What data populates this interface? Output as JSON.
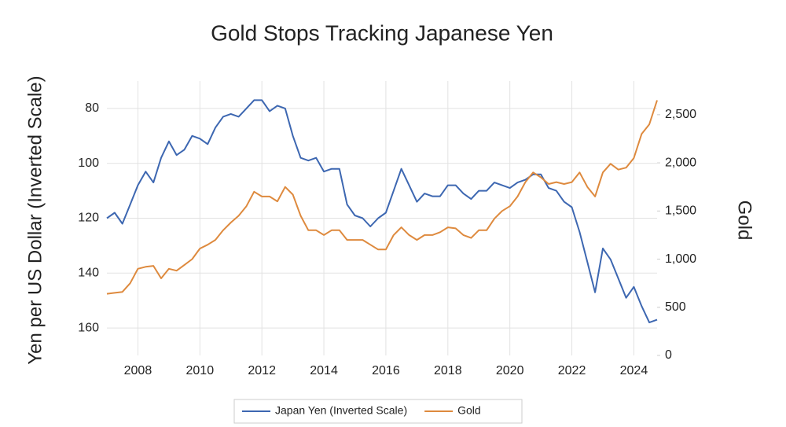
{
  "chart_data": {
    "type": "line",
    "title": "Gold Stops Tracking Japanese Yen",
    "y_label": "Yen per US Dollar (Inverted Scale)",
    "y2_label": "Gold",
    "x": [
      2007,
      2007.25,
      2007.5,
      2007.75,
      2008,
      2008.25,
      2008.5,
      2008.75,
      2009,
      2009.25,
      2009.5,
      2009.75,
      2010,
      2010.25,
      2010.5,
      2010.75,
      2011,
      2011.25,
      2011.5,
      2011.75,
      2012,
      2012.25,
      2012.5,
      2012.75,
      2013,
      2013.25,
      2013.5,
      2013.75,
      2014,
      2014.25,
      2014.5,
      2014.75,
      2015,
      2015.25,
      2015.5,
      2015.75,
      2016,
      2016.25,
      2016.5,
      2016.75,
      2017,
      2017.25,
      2017.5,
      2017.75,
      2018,
      2018.25,
      2018.5,
      2018.75,
      2019,
      2019.25,
      2019.5,
      2019.75,
      2020,
      2020.25,
      2020.5,
      2020.75,
      2021,
      2021.25,
      2021.5,
      2021.75,
      2022,
      2022.25,
      2022.5,
      2022.75,
      2023,
      2023.25,
      2023.5,
      2023.75,
      2024,
      2024.25,
      2024.5,
      2024.75
    ],
    "series": [
      {
        "name": "Japan Yen (Inverted Scale)",
        "color": "#3d67b1",
        "axis": "y",
        "values": [
          120,
          118,
          122,
          115,
          108,
          103,
          107,
          98,
          92,
          97,
          95,
          90,
          91,
          93,
          87,
          83,
          82,
          83,
          80,
          77,
          77,
          81,
          79,
          80,
          90,
          98,
          99,
          98,
          103,
          102,
          102,
          115,
          119,
          120,
          123,
          120,
          118,
          110,
          102,
          108,
          114,
          111,
          112,
          112,
          108,
          108,
          111,
          113,
          110,
          110,
          107,
          108,
          109,
          107,
          106,
          104,
          104,
          109,
          110,
          114,
          116,
          125,
          136,
          147,
          131,
          135,
          142,
          149,
          145,
          152,
          158,
          157
        ]
      },
      {
        "name": "Gold",
        "color": "#de8a3e",
        "axis": "y2",
        "values": [
          640,
          650,
          660,
          750,
          900,
          920,
          930,
          800,
          900,
          880,
          940,
          1000,
          1110,
          1150,
          1200,
          1300,
          1380,
          1450,
          1550,
          1700,
          1650,
          1650,
          1600,
          1750,
          1670,
          1450,
          1300,
          1300,
          1250,
          1300,
          1300,
          1200,
          1200,
          1200,
          1150,
          1100,
          1100,
          1250,
          1330,
          1250,
          1200,
          1250,
          1250,
          1280,
          1330,
          1320,
          1250,
          1220,
          1300,
          1300,
          1420,
          1500,
          1550,
          1650,
          1800,
          1900,
          1850,
          1780,
          1800,
          1780,
          1800,
          1900,
          1750,
          1650,
          1900,
          1990,
          1930,
          1950,
          2050,
          2300,
          2400,
          2650
        ]
      }
    ],
    "xlim": [
      2007,
      2024.75
    ],
    "xticks": [
      2008,
      2010,
      2012,
      2014,
      2016,
      2018,
      2020,
      2022,
      2024
    ],
    "ylim": [
      70,
      170
    ],
    "y_inverted": true,
    "yticks": [
      80,
      100,
      120,
      140,
      160
    ],
    "y2lim": [
      0,
      2850
    ],
    "y2ticks": [
      0,
      {
        "value": 500,
        "label": "500"
      },
      {
        "value": 1000,
        "label": "1,000"
      },
      {
        "value": 1500,
        "label": "1,500"
      },
      {
        "value": 2000,
        "label": "2,000"
      },
      {
        "value": 2500,
        "label": "2,500"
      }
    ],
    "grid": true,
    "legend": "bottom"
  }
}
